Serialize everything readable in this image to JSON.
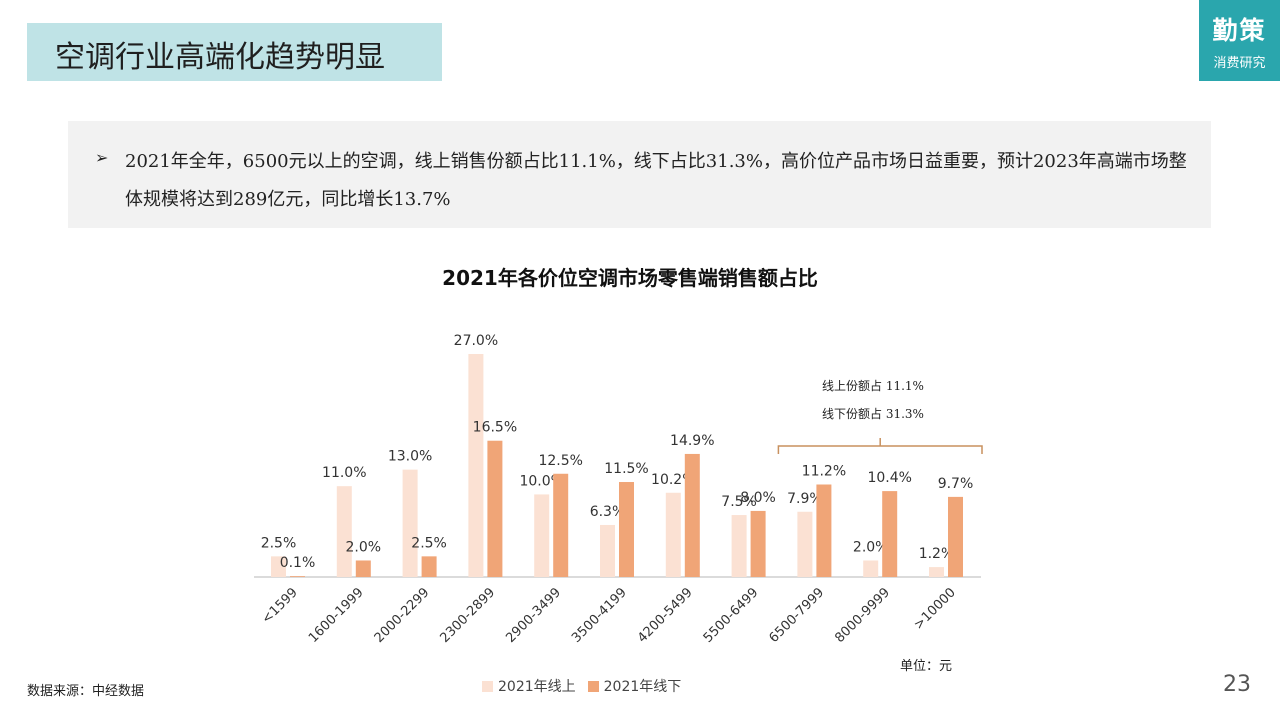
{
  "header": {
    "title": "空调行业高端化趋势明显",
    "logo_main": "勤策",
    "logo_sub": "消费研究"
  },
  "summary": {
    "bullet": "➢",
    "text": "2021年全年，6500元以上的空调，线上销售份额占比11.1%，线下占比31.3%，高价位产品市场日益重要，预计2023年高端市场整体规模将达到289亿元，同比增长13.7%"
  },
  "footer": {
    "source": "数据来源：中经数据",
    "unit": "单位：元",
    "page_number": "23"
  },
  "colors": {
    "title_bg": "#bfe3e6",
    "logo_bg": "#2aa6ad",
    "online": "#fbe1d3",
    "offline": "#f0a577",
    "bracket": "#c8915f"
  },
  "chart_data": {
    "type": "bar",
    "title": "2021年各价位空调市场零售端销售额占比",
    "categories": [
      "<1599",
      "1600-1999",
      "2000-2299",
      "2300-2899",
      "2900-3499",
      "3500-4199",
      "4200-5499",
      "5500-6499",
      "6500-7999",
      "8000-9999",
      ">10000"
    ],
    "series": [
      {
        "name": "2021年线上",
        "values": [
          2.5,
          11.0,
          13.0,
          27.0,
          10.0,
          6.3,
          10.2,
          7.5,
          7.9,
          2.0,
          1.2
        ],
        "labels": [
          "2.5%",
          "11.0%",
          "13.0%",
          "27.0%",
          "10.0%",
          "6.3%",
          "10.2%",
          "7.5%",
          "7.9%",
          "2.0%",
          "1.2%"
        ]
      },
      {
        "name": "2021年线下",
        "values": [
          0.1,
          2.0,
          2.5,
          16.5,
          12.5,
          11.5,
          14.9,
          8.0,
          11.2,
          10.4,
          9.7
        ],
        "labels": [
          "0.1%",
          "2.0%",
          "2.5%",
          "16.5%",
          "12.5%",
          "11.5%",
          "14.9%",
          "8.0%",
          "11.2%",
          "10.4%",
          "9.7%"
        ]
      }
    ],
    "ylim": [
      0,
      27
    ],
    "grid": false,
    "legend_position": "bottom",
    "annotation": {
      "lines": [
        "线上份额占 11.1%",
        "线下份额占 31.3%"
      ],
      "applies_to": [
        "6500-7999",
        "8000-9999",
        ">10000"
      ]
    }
  }
}
